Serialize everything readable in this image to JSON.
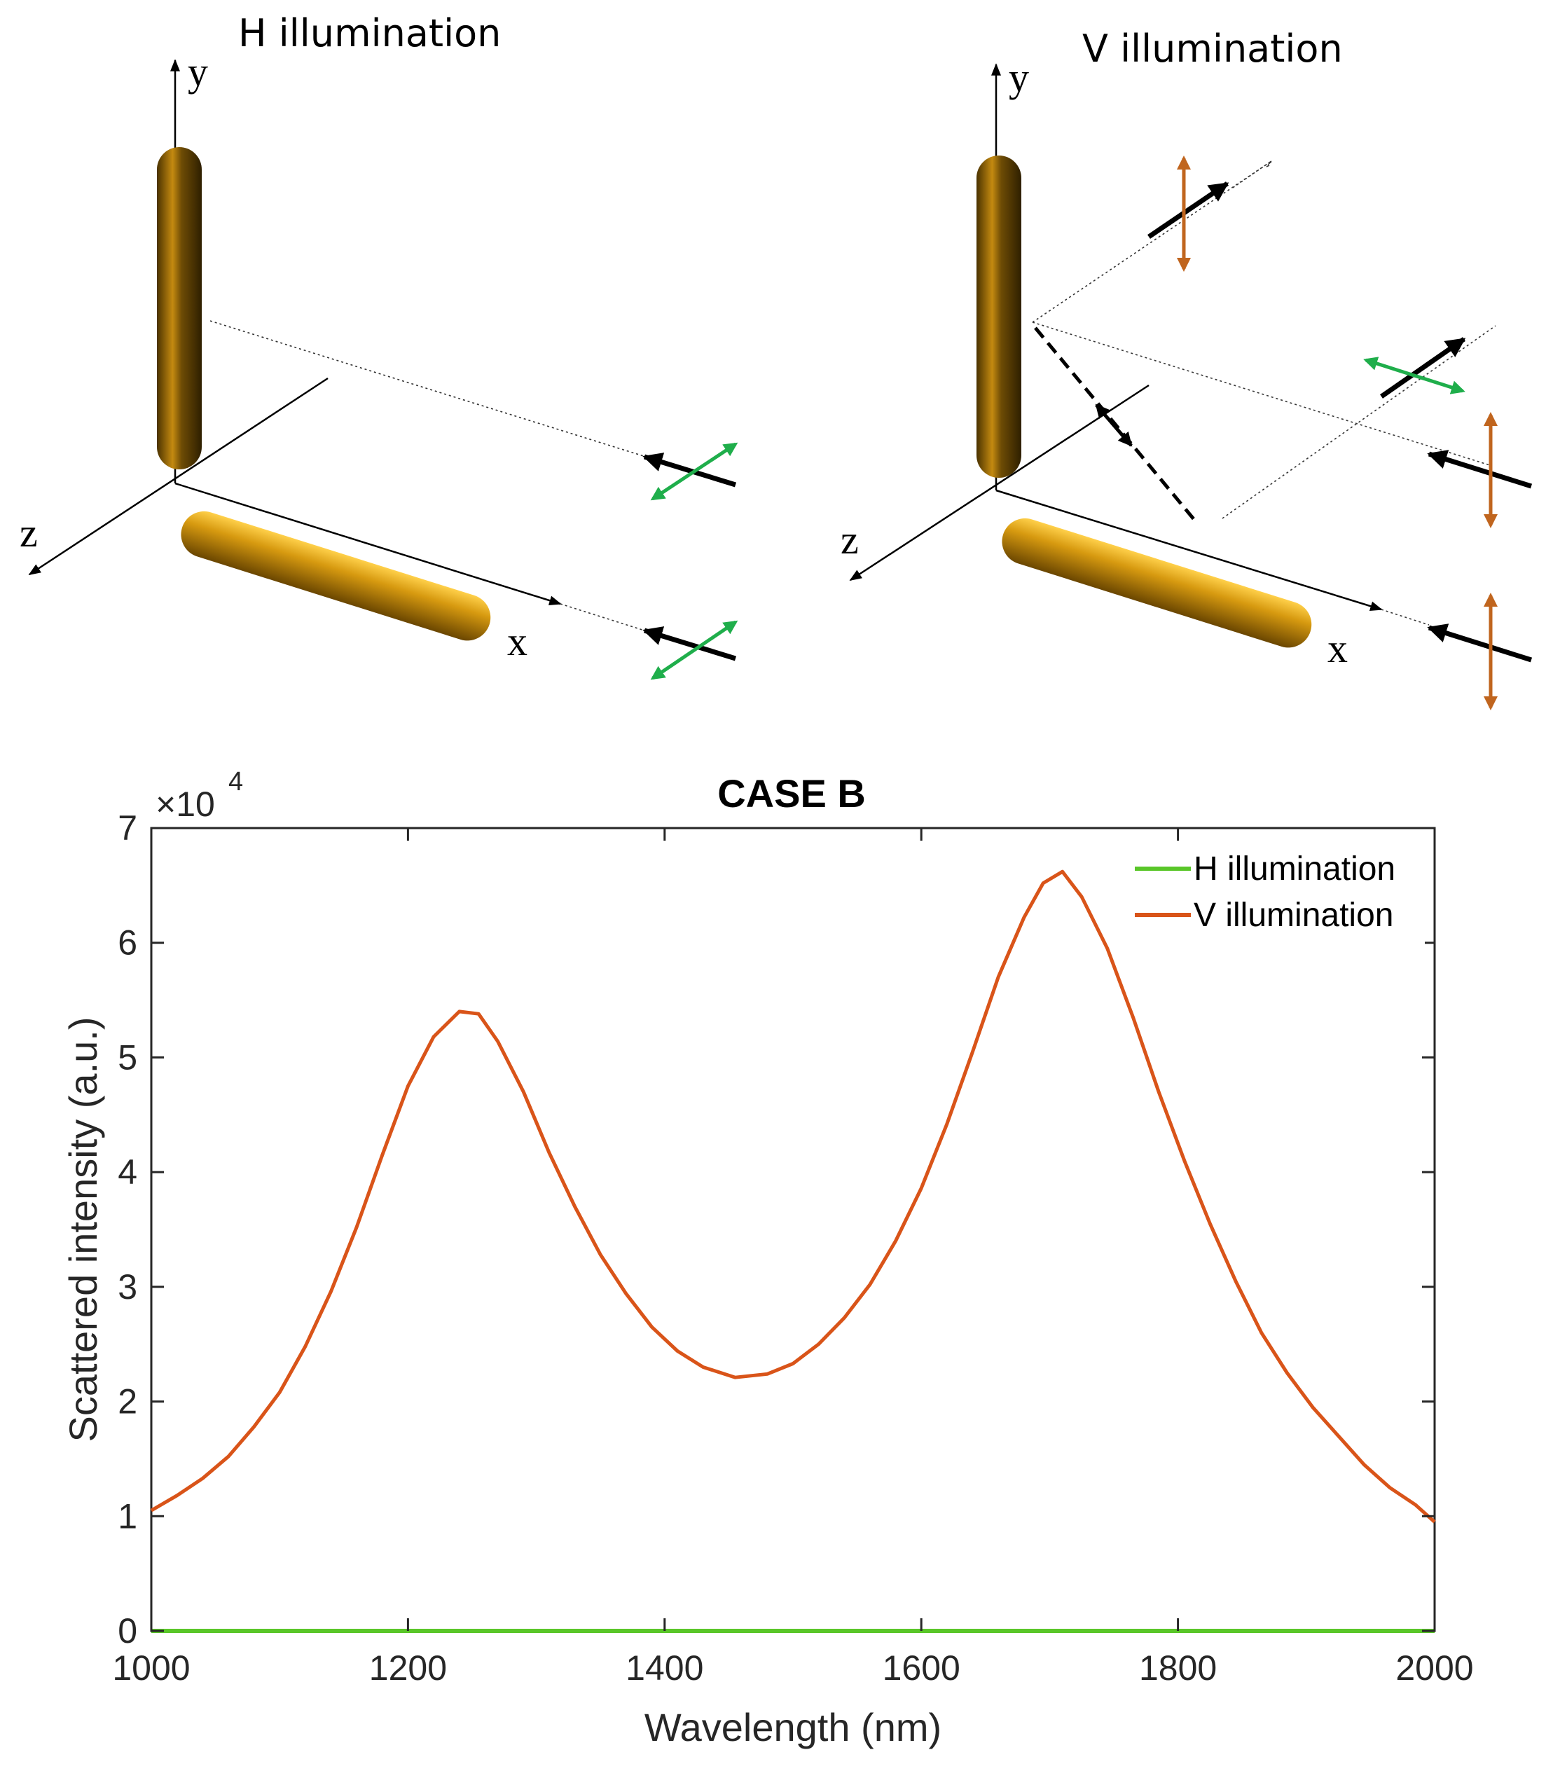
{
  "diagrams": {
    "left_title": "H illumination",
    "right_title": "V illumination",
    "axis_x": "x",
    "axis_y": "y",
    "axis_z": "z",
    "colors": {
      "rod": "#8a6108",
      "green_arrow": "#1fae4b",
      "orange_arrow": "#c0651e"
    }
  },
  "chart_data": {
    "type": "line",
    "title": "CASE B",
    "xlabel": "Wavelength (nm)",
    "ylabel": "Scattered intensity (a.u.)",
    "y_multiplier": "×10",
    "y_multiplier_exp": "4",
    "xlim": [
      1000,
      2000
    ],
    "ylim": [
      0,
      70000
    ],
    "xticks": [
      1000,
      1200,
      1400,
      1600,
      1800,
      2000
    ],
    "yticks": [
      0,
      10000,
      20000,
      30000,
      40000,
      50000,
      60000,
      70000
    ],
    "ytick_labels": [
      "0",
      "1",
      "2",
      "3",
      "4",
      "5",
      "6",
      "7"
    ],
    "grid": false,
    "legend_position": "top-right",
    "series": [
      {
        "name": "H illumination",
        "color": "#59c628",
        "x": [
          1000,
          2000
        ],
        "y": [
          0,
          0
        ]
      },
      {
        "name": "V illumination",
        "color": "#d95419",
        "x": [
          1000,
          1020,
          1040,
          1060,
          1080,
          1100,
          1120,
          1140,
          1160,
          1180,
          1200,
          1220,
          1240,
          1255,
          1270,
          1290,
          1310,
          1330,
          1350,
          1370,
          1390,
          1410,
          1430,
          1455,
          1480,
          1500,
          1520,
          1540,
          1560,
          1580,
          1600,
          1620,
          1640,
          1660,
          1680,
          1695,
          1710,
          1725,
          1745,
          1765,
          1785,
          1805,
          1825,
          1845,
          1865,
          1885,
          1905,
          1925,
          1945,
          1965,
          1985,
          2000
        ],
        "y": [
          10500,
          11800,
          13300,
          15200,
          17800,
          20800,
          24800,
          29600,
          35200,
          41500,
          47500,
          51800,
          54000,
          53800,
          51400,
          47000,
          41700,
          37000,
          32800,
          29400,
          26500,
          24400,
          23000,
          22100,
          22400,
          23300,
          25000,
          27300,
          30200,
          34000,
          38600,
          44200,
          50500,
          57000,
          62200,
          65200,
          66200,
          64000,
          59500,
          53500,
          47000,
          41000,
          35500,
          30500,
          26000,
          22500,
          19500,
          17000,
          14500,
          12500,
          11000,
          9500
        ]
      }
    ]
  }
}
